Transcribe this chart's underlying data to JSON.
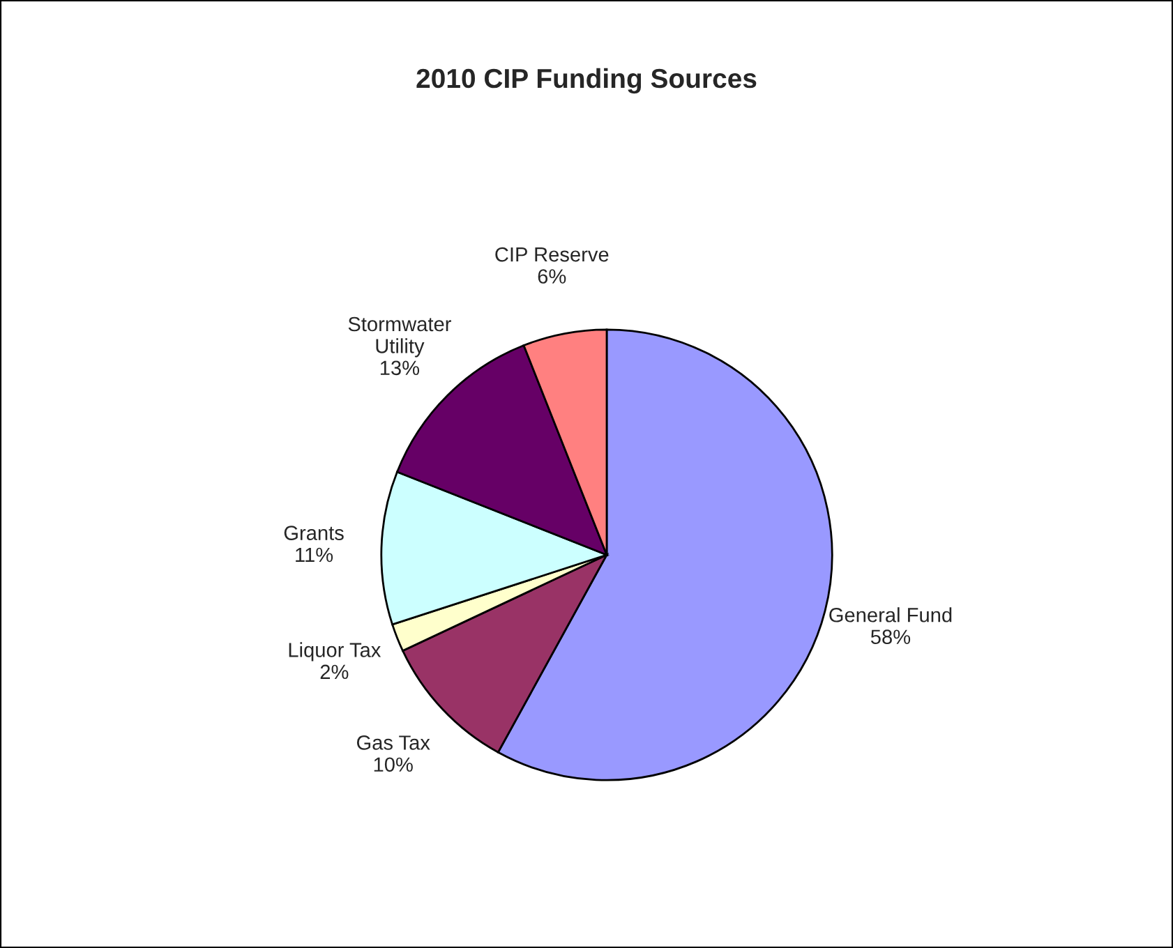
{
  "chart_data": {
    "type": "pie",
    "title": "2010 CIP Funding Sources",
    "categories": [
      "General Fund",
      "Gas Tax",
      "Liquor Tax",
      "Grants",
      "Stormwater\nUtility",
      "CIP Reserve"
    ],
    "values": [
      58,
      10,
      2,
      11,
      13,
      6
    ],
    "colors": [
      "#9999ff",
      "#993366",
      "#ffffcc",
      "#ccffff",
      "#660066",
      "#ff8080"
    ],
    "value_labels": [
      "58%",
      "10%",
      "2%",
      "11%",
      "13%",
      "6%"
    ]
  }
}
